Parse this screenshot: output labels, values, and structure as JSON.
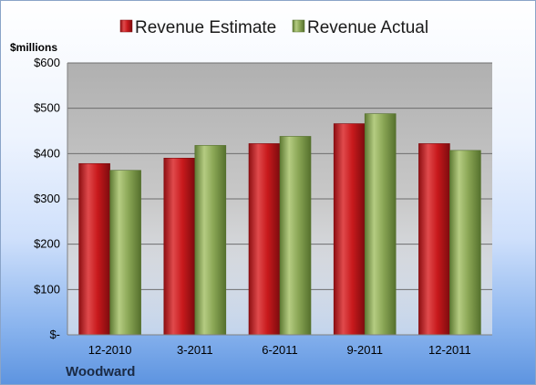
{
  "chart_data": {
    "type": "bar",
    "categories": [
      "12-2010",
      "3-2011",
      "6-2011",
      "9-2011",
      "12-2011"
    ],
    "series": [
      {
        "name": "Revenue Estimate",
        "values": [
          378,
          390,
          422,
          466,
          422
        ],
        "color": "#c8191c"
      },
      {
        "name": "Revenue Actual",
        "values": [
          363,
          418,
          438,
          488,
          407
        ],
        "color": "#8aa655"
      }
    ],
    "ylabel": "$millions",
    "ylim": [
      0,
      600
    ],
    "yticks": [
      0,
      100,
      200,
      300,
      400,
      500,
      600
    ],
    "ytick_labels": [
      "$-",
      "$100",
      "$200",
      "$300",
      "$400",
      "$500",
      "$600"
    ],
    "grid": true,
    "legend_position": "top",
    "company": "Woodward"
  }
}
